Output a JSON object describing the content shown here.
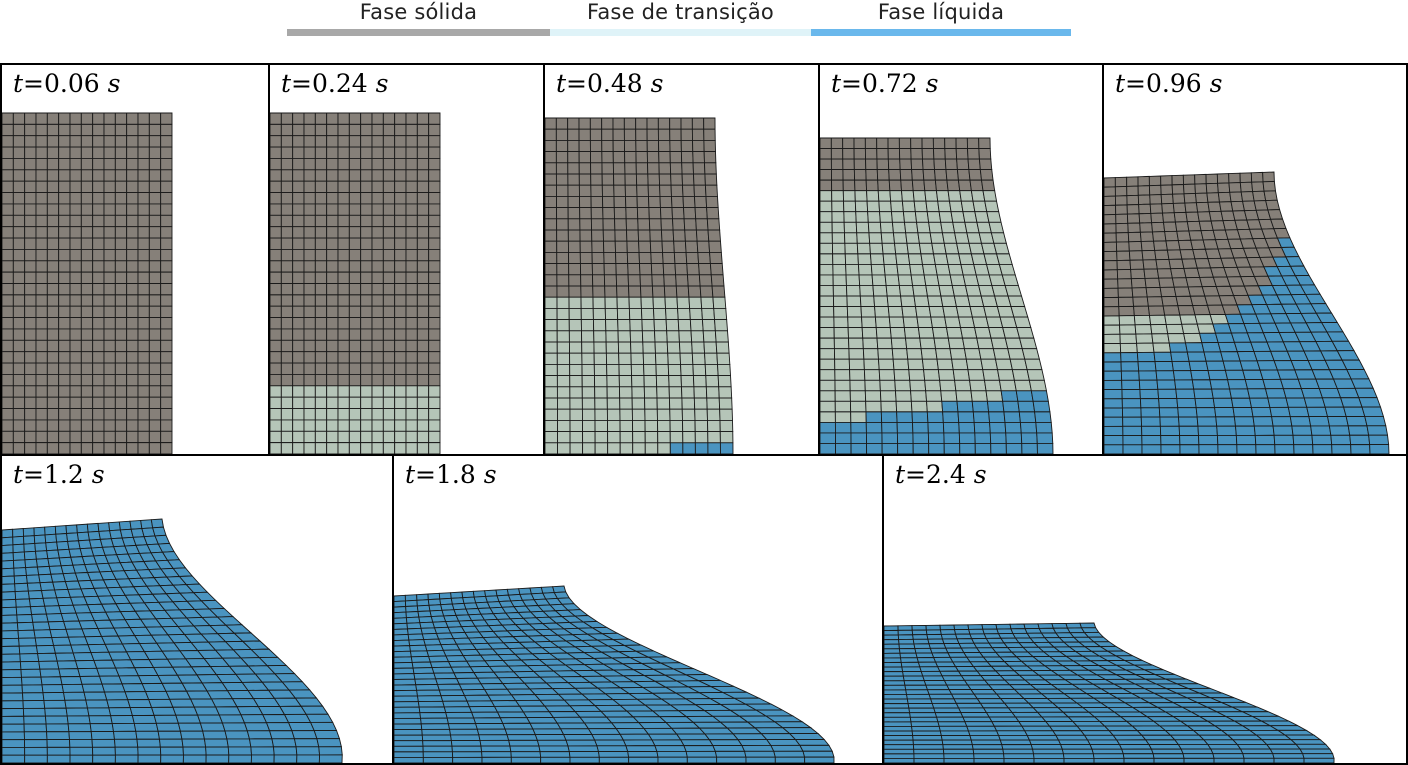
{
  "legend": [
    {
      "label": "Fase sólida",
      "color": "#a8a8a8"
    },
    {
      "label": "Fase de transição",
      "color": "#dff3f8"
    },
    {
      "label": "Fase líquida",
      "color": "#6ab8ec"
    }
  ],
  "colors": {
    "solid": "#868079",
    "transition": "#b5c5b8",
    "liquid": "#4a94c0",
    "mesh": "#1a1a1a"
  },
  "mesh": {
    "columns": 15,
    "rows": 30
  },
  "panels": [
    {
      "id": "p1",
      "var": "t",
      "eq": "=",
      "value": "0.06",
      "unit": "s",
      "liquid_frac": 0.0,
      "transition_frac": 0.0,
      "deform": 0.0
    },
    {
      "id": "p2",
      "var": "t",
      "eq": "=",
      "value": "0.24",
      "unit": "s",
      "liquid_frac": 0.0,
      "transition_frac": 0.2,
      "deform": 0.0
    },
    {
      "id": "p3",
      "var": "t",
      "eq": "=",
      "value": "0.48",
      "unit": "s",
      "liquid_frac": 0.015,
      "transition_frac": 0.45,
      "deform": 0.12
    },
    {
      "id": "p4",
      "var": "t",
      "eq": "=",
      "value": "0.72",
      "unit": "s",
      "liquid_frac": 0.15,
      "transition_frac": 0.85,
      "deform": 0.35
    },
    {
      "id": "p5",
      "var": "t",
      "eq": "=",
      "value": "0.96",
      "unit": "s",
      "liquid_frac": 0.5,
      "transition_frac": 0.5,
      "deform": 0.55
    },
    {
      "id": "p6",
      "var": "t",
      "eq": "=",
      "value": "1.2",
      "unit": "s",
      "liquid_frac": 1.0,
      "transition_frac": 0.0,
      "deform": 0.7
    },
    {
      "id": "p7",
      "var": "t",
      "eq": "=",
      "value": "1.8",
      "unit": "s",
      "liquid_frac": 1.0,
      "transition_frac": 0.0,
      "deform": 0.85
    },
    {
      "id": "p8",
      "var": "t",
      "eq": "=",
      "value": "2.4",
      "unit": "s",
      "liquid_frac": 1.0,
      "transition_frac": 0.0,
      "deform": 1.0
    }
  ]
}
